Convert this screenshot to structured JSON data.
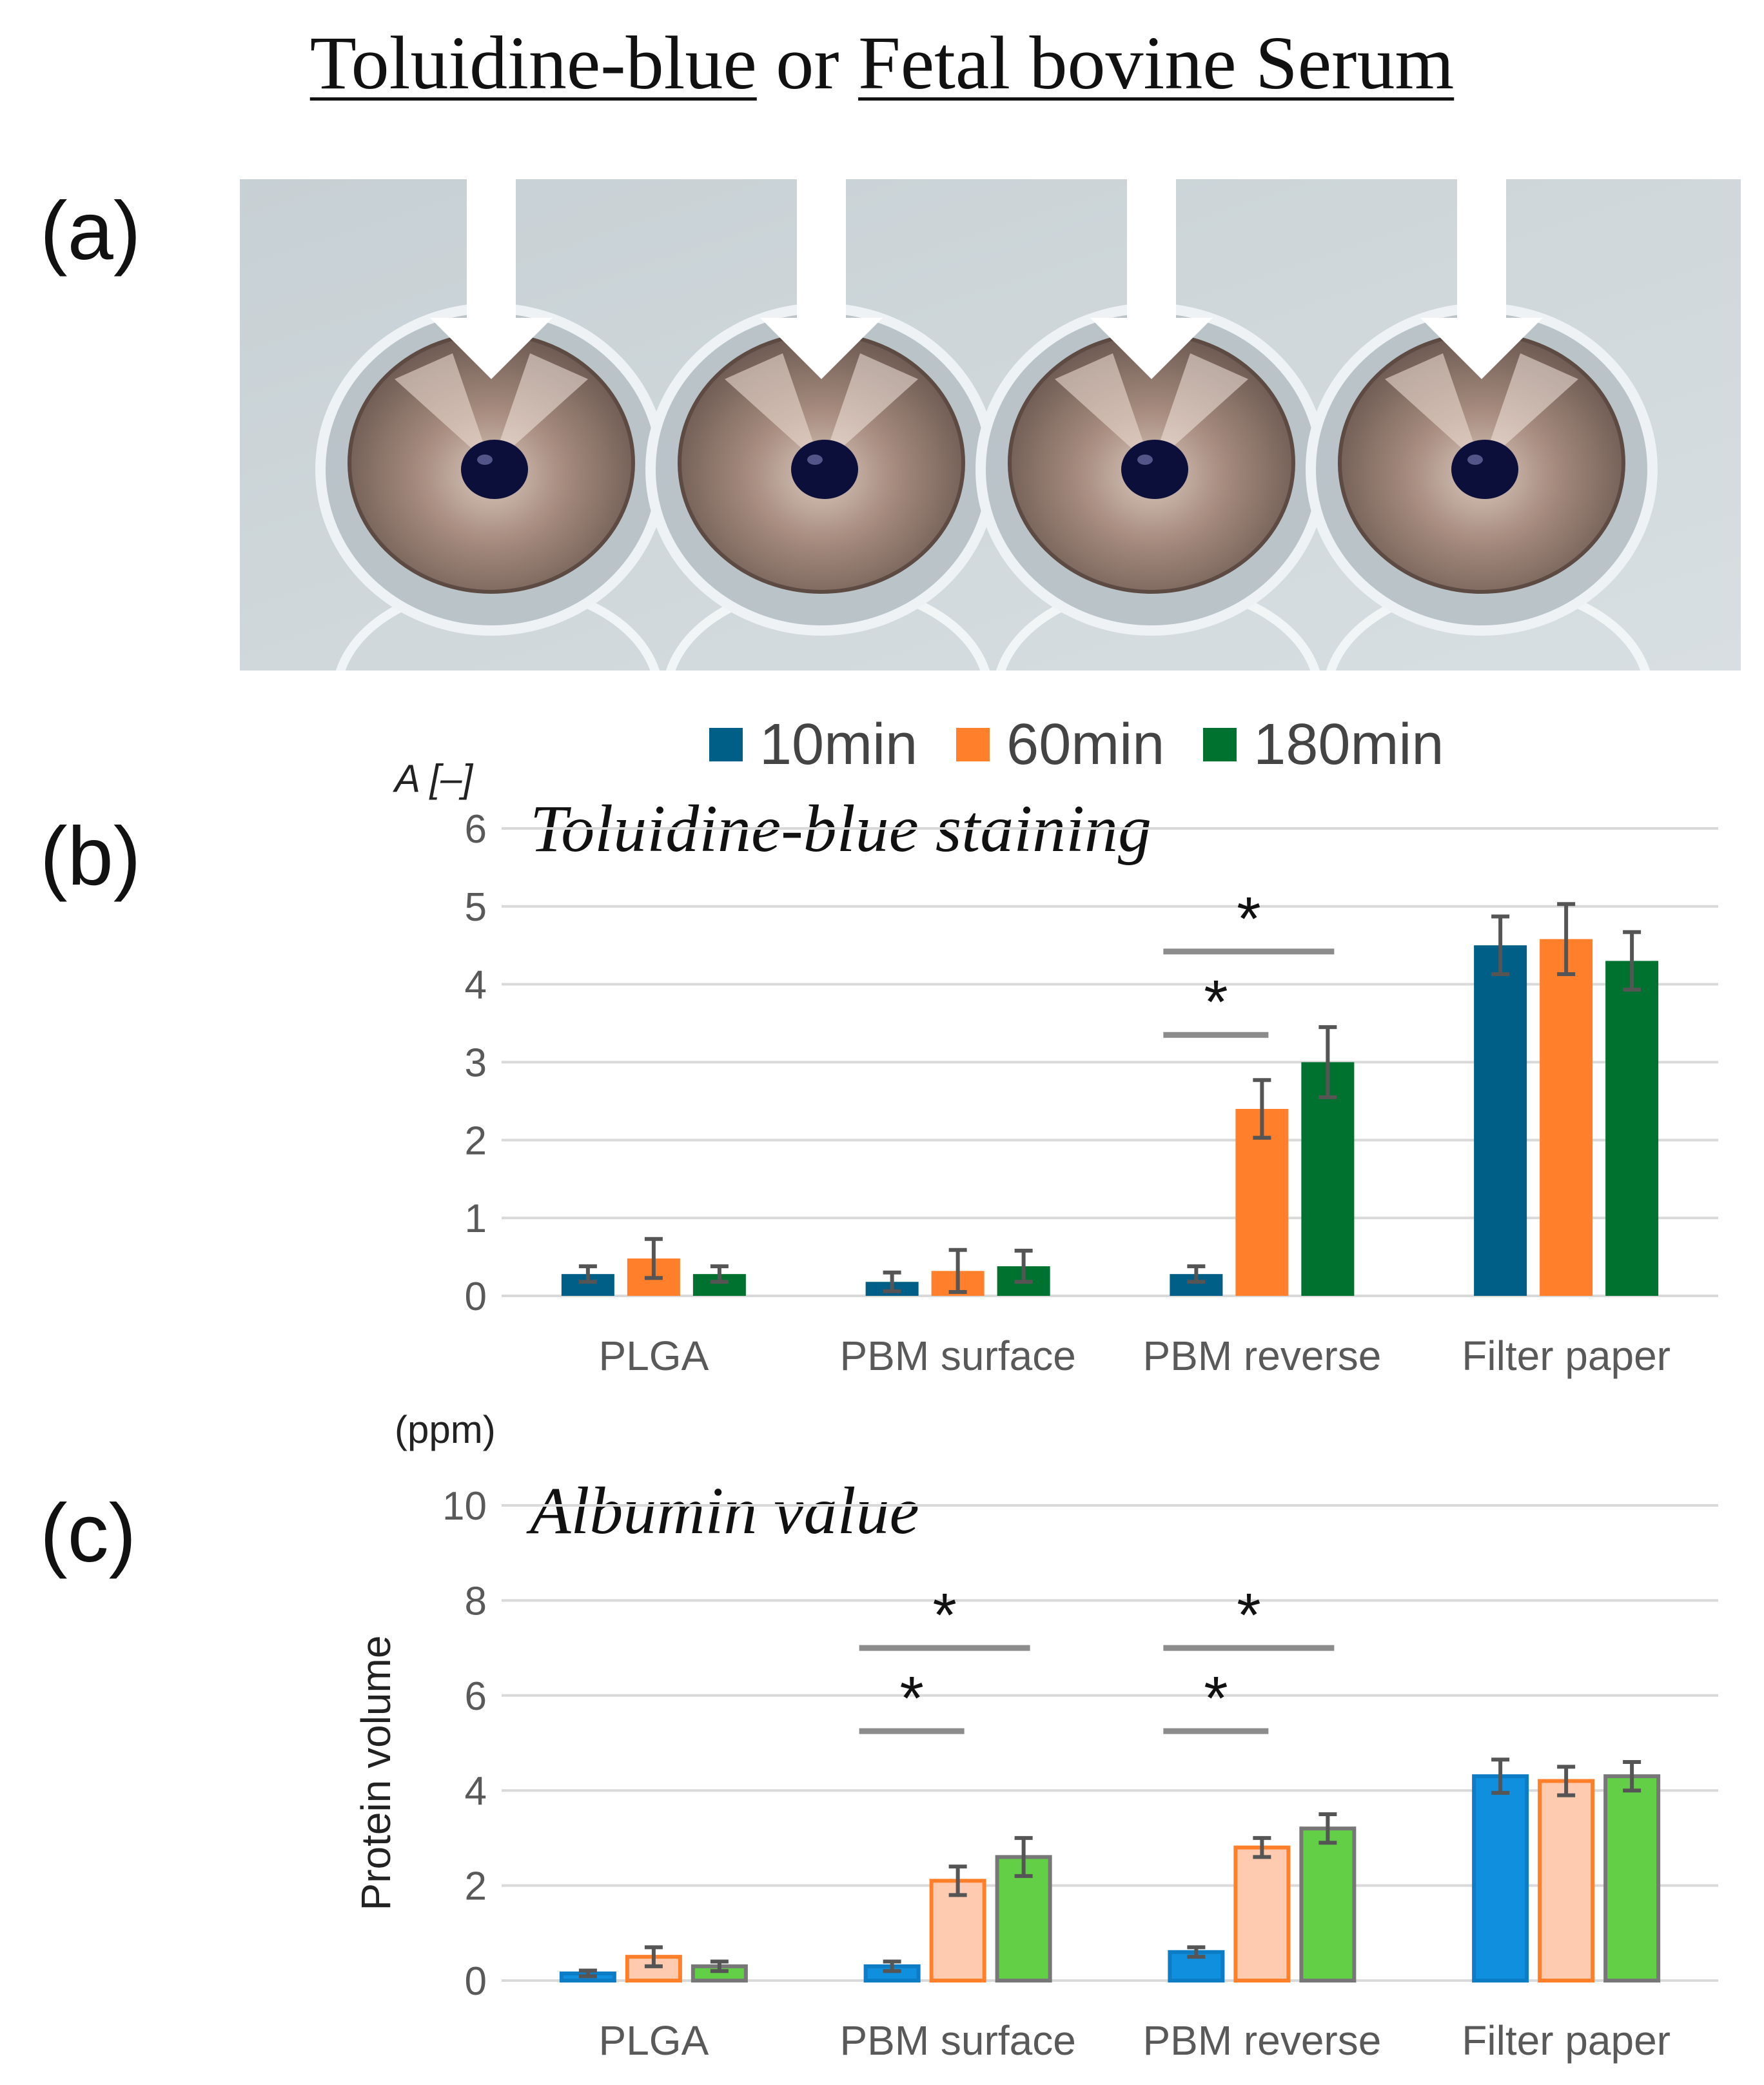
{
  "figure": {
    "title_part1": "Toluidine-blue",
    "title_or": " or ",
    "title_part2": "Fetal bovine Serum",
    "panel_a": "(a)",
    "panel_b": "(b)",
    "panel_c": "(c)"
  },
  "photo": {
    "icon": "arrow-down-icon",
    "wells": 4,
    "colors": {
      "background": "#cfd8dc",
      "plate": "#e6ebee",
      "metal": "#a78f84",
      "droplet": "#0c0f3a"
    }
  },
  "legend": [
    {
      "label": "10min",
      "color": "#005f87"
    },
    {
      "label": "60min",
      "color": "#ff7f2a"
    },
    {
      "label": "180min",
      "color": "#00722f"
    }
  ],
  "chart_data": [
    {
      "type": "bar",
      "title": "Toluidine-blue staining",
      "ylabel": "A [–]",
      "xlabel": "",
      "ylim": [
        0,
        6
      ],
      "yticks": [
        0,
        1,
        2,
        3,
        4,
        5,
        6
      ],
      "grid": true,
      "categories": [
        "PLGA",
        "PBM surface",
        "PBM reverse",
        "Filter paper"
      ],
      "series": [
        {
          "name": "10min",
          "values": [
            0.28,
            0.18,
            0.28,
            4.5
          ],
          "errors": [
            0.1,
            0.12,
            0.1,
            0.37
          ],
          "color": "#005f87"
        },
        {
          "name": "60min",
          "values": [
            0.48,
            0.32,
            2.4,
            4.58
          ],
          "errors": [
            0.25,
            0.27,
            0.37,
            0.45
          ],
          "color": "#ff7f2a"
        },
        {
          "name": "180min",
          "values": [
            0.28,
            0.38,
            3.0,
            4.3
          ],
          "errors": [
            0.1,
            0.2,
            0.45,
            0.37
          ],
          "color": "#00722f"
        }
      ],
      "significance": [
        {
          "category": "PBM reverse",
          "from": "10min",
          "to": "60min",
          "label": "*",
          "y": 3.35
        },
        {
          "category": "PBM reverse",
          "from": "10min",
          "to": "180min",
          "label": "*",
          "y": 4.42
        }
      ]
    },
    {
      "type": "bar",
      "title": "Albumin value",
      "ylabel": "Protein volume",
      "yunit": "(ppm)",
      "xlabel": "",
      "ylim": [
        0,
        10
      ],
      "yticks": [
        0,
        2,
        4,
        6,
        8,
        10
      ],
      "grid": true,
      "categories": [
        "PLGA",
        "PBM surface",
        "PBM reverse",
        "Filter paper"
      ],
      "series": [
        {
          "name": "10min",
          "values": [
            0.15,
            0.3,
            0.6,
            4.3
          ],
          "errors": [
            0.06,
            0.1,
            0.1,
            0.35
          ],
          "color": "#0f8fde",
          "outline": "#0c7dc4"
        },
        {
          "name": "60min",
          "values": [
            0.5,
            2.1,
            2.8,
            4.2
          ],
          "errors": [
            0.2,
            0.3,
            0.2,
            0.3
          ],
          "color": "#ffcbb0",
          "outline": "#ff7f2a"
        },
        {
          "name": "180min",
          "values": [
            0.3,
            2.6,
            3.2,
            4.3
          ],
          "errors": [
            0.1,
            0.4,
            0.3,
            0.3
          ],
          "color": "#63cf46",
          "outline": "#777777"
        }
      ],
      "significance": [
        {
          "category": "PBM surface",
          "from": "10min",
          "to": "60min",
          "label": "*",
          "y": 5.25
        },
        {
          "category": "PBM surface",
          "from": "10min",
          "to": "180min",
          "label": "*",
          "y": 7.0
        },
        {
          "category": "PBM reverse",
          "from": "10min",
          "to": "60min",
          "label": "*",
          "y": 5.25
        },
        {
          "category": "PBM reverse",
          "from": "10min",
          "to": "180min",
          "label": "*",
          "y": 7.0
        }
      ]
    }
  ]
}
